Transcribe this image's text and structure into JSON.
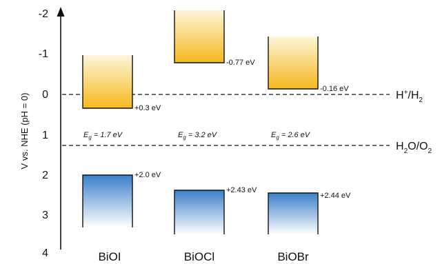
{
  "axis": {
    "ylabel": "V vs. NHE (pH = 0)",
    "ticks": [
      "-2",
      "-1",
      "0",
      "1",
      "2",
      "3",
      "4"
    ]
  },
  "references": {
    "h_plus": "H",
    "h_plus_sup": "+",
    "h_plus_tail": "/H",
    "h_plus_sub": "2",
    "water": "H",
    "water_sub1": "2",
    "water_mid": "O/O",
    "water_sub2": "2"
  },
  "materials": [
    {
      "name": "BiOI",
      "cb_label": "+0.3 eV",
      "vb_label": "+2.0 eV",
      "eg_symbol": "E",
      "eg_sub": "g",
      "eg_text": " = 1.7 eV"
    },
    {
      "name": "BiOCl",
      "cb_label": "-0.77 eV",
      "vb_label": "+2.43 eV",
      "eg_symbol": "E",
      "eg_sub": "g",
      "eg_text": " = 3.2 eV"
    },
    {
      "name": "BiOBr",
      "cb_label": "-0.16 eV",
      "vb_label": "+2.44 eV",
      "eg_symbol": "E",
      "eg_sub": "g",
      "eg_text": " = 2.6 eV"
    }
  ],
  "colors": {
    "cb_top": "#fdf6d8",
    "cb_bottom": "#f5b81e",
    "vb_top": "#3a7fcb",
    "vb_bottom": "#ffffff",
    "line": "#111111"
  }
}
